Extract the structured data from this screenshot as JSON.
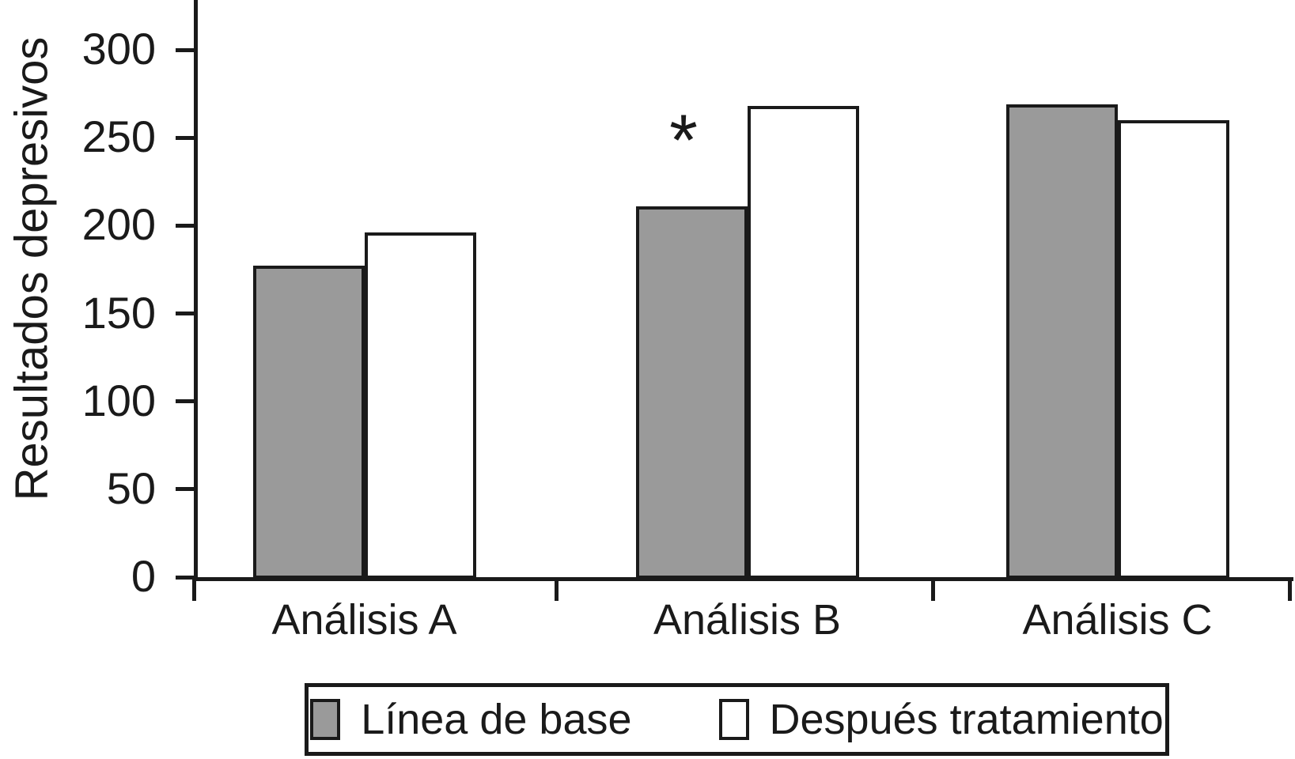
{
  "chart_data": {
    "type": "bar",
    "title": "",
    "ylabel": "Resultados depresivos",
    "xlabel": "",
    "categories": [
      "Análisis A",
      "Análisis B",
      "Análisis C"
    ],
    "series": [
      {
        "name": "Línea de base",
        "color": "#9a9a9a",
        "values": [
          178,
          212,
          270
        ]
      },
      {
        "name": "Después tratamiento",
        "color": "#ffffff",
        "values": [
          197,
          269,
          261
        ]
      }
    ],
    "yticks": [
      0,
      50,
      100,
      150,
      200,
      250,
      300
    ],
    "ylim": [
      0,
      328
    ],
    "grid": false,
    "legend_position": "bottom",
    "annotation": {
      "text": "*",
      "category": "Análisis B",
      "series": "Línea de base",
      "value_y": 245
    }
  },
  "colors": {
    "bar_border": "#1a1a1a",
    "axis": "#1a1a1a",
    "background": "#ffffff"
  }
}
